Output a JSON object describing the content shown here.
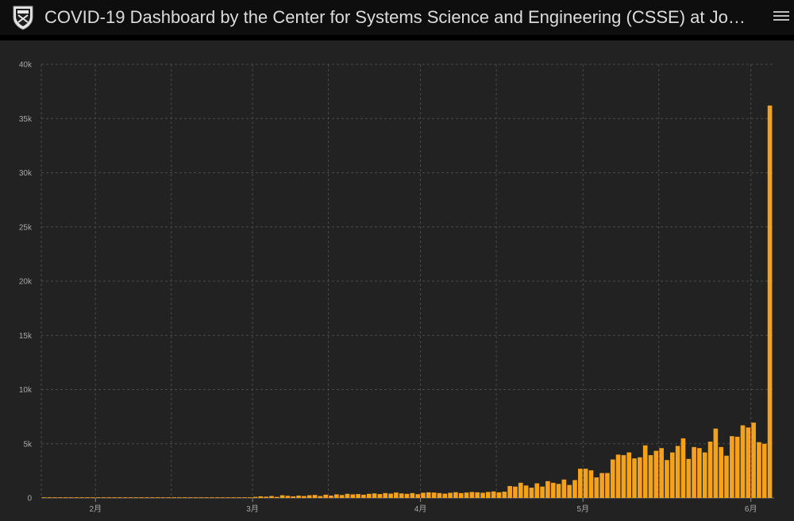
{
  "header": {
    "title": "COVID-19 Dashboard by the Center for Systems Science and Engineering (CSSE) at Jo…",
    "logo_icon": "university-shield-icon",
    "menu_icon": "hamburger-menu-icon"
  },
  "colors": {
    "background": "#222222",
    "header": "#0e0e0e",
    "bar": "#f5a21b",
    "grid": "#4a4a4a",
    "axis_text": "#a8a8a8"
  },
  "chart_data": {
    "type": "bar",
    "title": "",
    "xlabel": "",
    "ylabel": "",
    "ylim": [
      0,
      40000
    ],
    "y_ticks": [
      0,
      5000,
      10000,
      15000,
      20000,
      25000,
      30000,
      35000,
      40000
    ],
    "y_tick_labels": [
      "0",
      "5k",
      "10k",
      "15k",
      "20k",
      "25k",
      "30k",
      "35k",
      "40k"
    ],
    "x_ticks": [
      {
        "date": "2020-02-01",
        "label": "2月"
      },
      {
        "date": "2020-03-01",
        "label": "3月"
      },
      {
        "date": "2020-04-01",
        "label": "4月"
      },
      {
        "date": "2020-05-01",
        "label": "5月"
      },
      {
        "date": "2020-06-01",
        "label": "6月"
      }
    ],
    "x_range": [
      "2020-01-22",
      "2020-06-04"
    ],
    "grid": true,
    "series": [
      {
        "values": [
          {
            "x": "2020-01-22",
            "y": 0
          },
          {
            "x": "2020-01-23",
            "y": 0
          },
          {
            "x": "2020-01-24",
            "y": 0
          },
          {
            "x": "2020-01-25",
            "y": 0
          },
          {
            "x": "2020-01-26",
            "y": 0
          },
          {
            "x": "2020-01-27",
            "y": 0
          },
          {
            "x": "2020-01-28",
            "y": 0
          },
          {
            "x": "2020-01-29",
            "y": 0
          },
          {
            "x": "2020-01-30",
            "y": 0
          },
          {
            "x": "2020-01-31",
            "y": 0
          },
          {
            "x": "2020-02-01",
            "y": 0
          },
          {
            "x": "2020-02-02",
            "y": 0
          },
          {
            "x": "2020-02-03",
            "y": 0
          },
          {
            "x": "2020-02-04",
            "y": 0
          },
          {
            "x": "2020-02-05",
            "y": 0
          },
          {
            "x": "2020-02-06",
            "y": 0
          },
          {
            "x": "2020-02-07",
            "y": 0
          },
          {
            "x": "2020-02-08",
            "y": 0
          },
          {
            "x": "2020-02-09",
            "y": 0
          },
          {
            "x": "2020-02-10",
            "y": 0
          },
          {
            "x": "2020-02-11",
            "y": 0
          },
          {
            "x": "2020-02-12",
            "y": 0
          },
          {
            "x": "2020-02-13",
            "y": 0
          },
          {
            "x": "2020-02-14",
            "y": 0
          },
          {
            "x": "2020-02-15",
            "y": 0
          },
          {
            "x": "2020-02-16",
            "y": 0
          },
          {
            "x": "2020-02-17",
            "y": 0
          },
          {
            "x": "2020-02-18",
            "y": 0
          },
          {
            "x": "2020-02-19",
            "y": 0
          },
          {
            "x": "2020-02-20",
            "y": 0
          },
          {
            "x": "2020-02-21",
            "y": 0
          },
          {
            "x": "2020-02-22",
            "y": 0
          },
          {
            "x": "2020-02-23",
            "y": 0
          },
          {
            "x": "2020-02-24",
            "y": 0
          },
          {
            "x": "2020-02-25",
            "y": 0
          },
          {
            "x": "2020-02-26",
            "y": 0
          },
          {
            "x": "2020-02-27",
            "y": 0
          },
          {
            "x": "2020-02-28",
            "y": 0
          },
          {
            "x": "2020-02-29",
            "y": 0
          },
          {
            "x": "2020-03-01",
            "y": 100
          },
          {
            "x": "2020-03-02",
            "y": 150
          },
          {
            "x": "2020-03-03",
            "y": 120
          },
          {
            "x": "2020-03-04",
            "y": 180
          },
          {
            "x": "2020-03-05",
            "y": 100
          },
          {
            "x": "2020-03-06",
            "y": 250
          },
          {
            "x": "2020-03-07",
            "y": 200
          },
          {
            "x": "2020-03-08",
            "y": 150
          },
          {
            "x": "2020-03-09",
            "y": 220
          },
          {
            "x": "2020-03-10",
            "y": 180
          },
          {
            "x": "2020-03-11",
            "y": 250
          },
          {
            "x": "2020-03-12",
            "y": 280
          },
          {
            "x": "2020-03-13",
            "y": 180
          },
          {
            "x": "2020-03-14",
            "y": 300
          },
          {
            "x": "2020-03-15",
            "y": 220
          },
          {
            "x": "2020-03-16",
            "y": 330
          },
          {
            "x": "2020-03-17",
            "y": 270
          },
          {
            "x": "2020-03-18",
            "y": 380
          },
          {
            "x": "2020-03-19",
            "y": 330
          },
          {
            "x": "2020-03-20",
            "y": 360
          },
          {
            "x": "2020-03-21",
            "y": 300
          },
          {
            "x": "2020-03-22",
            "y": 380
          },
          {
            "x": "2020-03-23",
            "y": 420
          },
          {
            "x": "2020-03-24",
            "y": 360
          },
          {
            "x": "2020-03-25",
            "y": 450
          },
          {
            "x": "2020-03-26",
            "y": 400
          },
          {
            "x": "2020-03-27",
            "y": 500
          },
          {
            "x": "2020-03-28",
            "y": 420
          },
          {
            "x": "2020-03-29",
            "y": 380
          },
          {
            "x": "2020-03-30",
            "y": 450
          },
          {
            "x": "2020-03-31",
            "y": 350
          },
          {
            "x": "2020-04-01",
            "y": 480
          },
          {
            "x": "2020-04-02",
            "y": 520
          },
          {
            "x": "2020-04-03",
            "y": 500
          },
          {
            "x": "2020-04-04",
            "y": 450
          },
          {
            "x": "2020-04-05",
            "y": 400
          },
          {
            "x": "2020-04-06",
            "y": 480
          },
          {
            "x": "2020-04-07",
            "y": 530
          },
          {
            "x": "2020-04-08",
            "y": 450
          },
          {
            "x": "2020-04-09",
            "y": 500
          },
          {
            "x": "2020-04-10",
            "y": 550
          },
          {
            "x": "2020-04-11",
            "y": 520
          },
          {
            "x": "2020-04-12",
            "y": 480
          },
          {
            "x": "2020-04-13",
            "y": 550
          },
          {
            "x": "2020-04-14",
            "y": 600
          },
          {
            "x": "2020-04-15",
            "y": 520
          },
          {
            "x": "2020-04-16",
            "y": 580
          },
          {
            "x": "2020-04-17",
            "y": 1100
          },
          {
            "x": "2020-04-18",
            "y": 1050
          },
          {
            "x": "2020-04-19",
            "y": 1400
          },
          {
            "x": "2020-04-20",
            "y": 1150
          },
          {
            "x": "2020-04-21",
            "y": 950
          },
          {
            "x": "2020-04-22",
            "y": 1350
          },
          {
            "x": "2020-04-23",
            "y": 1050
          },
          {
            "x": "2020-04-24",
            "y": 1550
          },
          {
            "x": "2020-04-25",
            "y": 1400
          },
          {
            "x": "2020-04-26",
            "y": 1300
          },
          {
            "x": "2020-04-27",
            "y": 1700
          },
          {
            "x": "2020-04-28",
            "y": 1200
          },
          {
            "x": "2020-04-29",
            "y": 1650
          },
          {
            "x": "2020-04-30",
            "y": 2700
          },
          {
            "x": "2020-05-01",
            "y": 2700
          },
          {
            "x": "2020-05-02",
            "y": 2550
          },
          {
            "x": "2020-05-03",
            "y": 1900
          },
          {
            "x": "2020-05-04",
            "y": 2300
          },
          {
            "x": "2020-05-05",
            "y": 2300
          },
          {
            "x": "2020-05-06",
            "y": 3550
          },
          {
            "x": "2020-05-07",
            "y": 4000
          },
          {
            "x": "2020-05-08",
            "y": 3950
          },
          {
            "x": "2020-05-09",
            "y": 4200
          },
          {
            "x": "2020-05-10",
            "y": 3650
          },
          {
            "x": "2020-05-11",
            "y": 3750
          },
          {
            "x": "2020-05-12",
            "y": 4850
          },
          {
            "x": "2020-05-13",
            "y": 3950
          },
          {
            "x": "2020-05-14",
            "y": 4350
          },
          {
            "x": "2020-05-15",
            "y": 4600
          },
          {
            "x": "2020-05-16",
            "y": 3500
          },
          {
            "x": "2020-05-17",
            "y": 4200
          },
          {
            "x": "2020-05-18",
            "y": 4800
          },
          {
            "x": "2020-05-19",
            "y": 5500
          },
          {
            "x": "2020-05-20",
            "y": 3600
          },
          {
            "x": "2020-05-21",
            "y": 4700
          },
          {
            "x": "2020-05-22",
            "y": 4600
          },
          {
            "x": "2020-05-23",
            "y": 4200
          },
          {
            "x": "2020-05-24",
            "y": 5200
          },
          {
            "x": "2020-05-25",
            "y": 6400
          },
          {
            "x": "2020-05-26",
            "y": 4700
          },
          {
            "x": "2020-05-27",
            "y": 3900
          },
          {
            "x": "2020-05-28",
            "y": 5700
          },
          {
            "x": "2020-05-29",
            "y": 5650
          },
          {
            "x": "2020-05-30",
            "y": 6700
          },
          {
            "x": "2020-05-31",
            "y": 6500
          },
          {
            "x": "2020-06-01",
            "y": 6950
          },
          {
            "x": "2020-06-02",
            "y": 5150
          },
          {
            "x": "2020-06-03",
            "y": 5000
          },
          {
            "x": "2020-06-04",
            "y": 36200
          }
        ]
      }
    ]
  }
}
